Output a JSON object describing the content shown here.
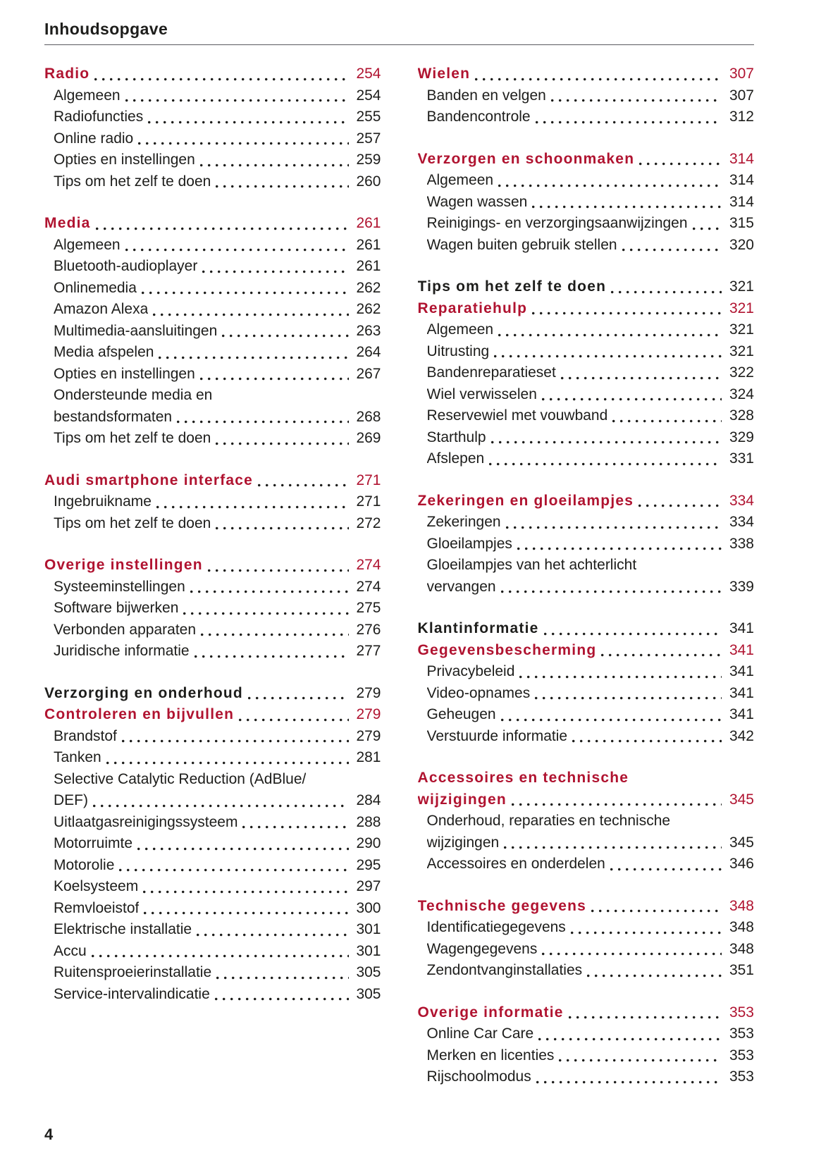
{
  "page": {
    "header": "Inhoudsopgave",
    "page_number": "4",
    "accent_color": "#b01330",
    "rule_color": "#595a5e",
    "text_color": "#1d1d1b"
  },
  "columns": [
    {
      "sections": [
        {
          "entries": [
            {
              "style": "red",
              "lines": [
                "Radio"
              ],
              "page": "254"
            },
            {
              "style": "item",
              "lines": [
                "Algemeen"
              ],
              "page": "254"
            },
            {
              "style": "item",
              "lines": [
                "Radiofuncties"
              ],
              "page": "255"
            },
            {
              "style": "item",
              "lines": [
                "Online radio"
              ],
              "page": "257"
            },
            {
              "style": "item",
              "lines": [
                "Opties en instellingen"
              ],
              "page": "259"
            },
            {
              "style": "item",
              "lines": [
                "Tips om het zelf te doen"
              ],
              "page": "260"
            }
          ]
        },
        {
          "entries": [
            {
              "style": "red",
              "lines": [
                "Media"
              ],
              "page": "261"
            },
            {
              "style": "item",
              "lines": [
                "Algemeen"
              ],
              "page": "261"
            },
            {
              "style": "item",
              "lines": [
                "Bluetooth-audioplayer"
              ],
              "page": "261"
            },
            {
              "style": "item",
              "lines": [
                "Onlinemedia"
              ],
              "page": "262"
            },
            {
              "style": "item",
              "lines": [
                "Amazon Alexa"
              ],
              "page": "262"
            },
            {
              "style": "item",
              "lines": [
                "Multimedia-aansluitingen"
              ],
              "page": "263"
            },
            {
              "style": "item",
              "lines": [
                "Media afspelen"
              ],
              "page": "264"
            },
            {
              "style": "item",
              "lines": [
                "Opties en instellingen"
              ],
              "page": "267"
            },
            {
              "style": "item",
              "lines": [
                "Ondersteunde media en",
                "bestandsformaten"
              ],
              "page": "268"
            },
            {
              "style": "item",
              "lines": [
                "Tips om het zelf te doen"
              ],
              "page": "269"
            }
          ]
        },
        {
          "entries": [
            {
              "style": "red",
              "lines": [
                "Audi smartphone interface"
              ],
              "page": "271"
            },
            {
              "style": "item",
              "lines": [
                "Ingebruikname"
              ],
              "page": "271"
            },
            {
              "style": "item",
              "lines": [
                "Tips om het zelf te doen"
              ],
              "page": "272"
            }
          ]
        },
        {
          "entries": [
            {
              "style": "red",
              "lines": [
                "Overige instellingen"
              ],
              "page": "274"
            },
            {
              "style": "item",
              "lines": [
                "Systeeminstellingen"
              ],
              "page": "274"
            },
            {
              "style": "item",
              "lines": [
                "Software bijwerken"
              ],
              "page": "275"
            },
            {
              "style": "item",
              "lines": [
                "Verbonden apparaten"
              ],
              "page": "276"
            },
            {
              "style": "item",
              "lines": [
                "Juridische informatie"
              ],
              "page": "277"
            }
          ]
        },
        {
          "entries": [
            {
              "style": "black",
              "lines": [
                "Verzorging en onderhoud"
              ],
              "page": "279"
            },
            {
              "style": "red",
              "lines": [
                "Controleren en bijvullen"
              ],
              "page": "279"
            },
            {
              "style": "item",
              "lines": [
                "Brandstof"
              ],
              "page": "279"
            },
            {
              "style": "item",
              "lines": [
                "Tanken"
              ],
              "page": "281"
            },
            {
              "style": "item",
              "lines": [
                "Selective Catalytic Reduction (AdBlue/",
                "DEF)"
              ],
              "page": "284"
            },
            {
              "style": "item",
              "lines": [
                "Uitlaatgasreinigingssysteem"
              ],
              "page": "288"
            },
            {
              "style": "item",
              "lines": [
                "Motorruimte"
              ],
              "page": "290"
            },
            {
              "style": "item",
              "lines": [
                "Motorolie"
              ],
              "page": "295"
            },
            {
              "style": "item",
              "lines": [
                "Koelsysteem"
              ],
              "page": "297"
            },
            {
              "style": "item",
              "lines": [
                "Remvloeistof"
              ],
              "page": "300"
            },
            {
              "style": "item",
              "lines": [
                "Elektrische installatie"
              ],
              "page": "301"
            },
            {
              "style": "item",
              "lines": [
                "Accu"
              ],
              "page": "301"
            },
            {
              "style": "item",
              "lines": [
                "Ruitensproeierinstallatie"
              ],
              "page": "305"
            },
            {
              "style": "item",
              "lines": [
                "Service-intervalindicatie"
              ],
              "page": "305"
            }
          ]
        }
      ]
    },
    {
      "sections": [
        {
          "entries": [
            {
              "style": "red",
              "lines": [
                "Wielen"
              ],
              "page": "307"
            },
            {
              "style": "item",
              "lines": [
                "Banden en velgen"
              ],
              "page": "307"
            },
            {
              "style": "item",
              "lines": [
                "Bandencontrole"
              ],
              "page": "312"
            }
          ]
        },
        {
          "entries": [
            {
              "style": "red",
              "lines": [
                "Verzorgen en schoonmaken"
              ],
              "page": "314"
            },
            {
              "style": "item",
              "lines": [
                "Algemeen"
              ],
              "page": "314"
            },
            {
              "style": "item",
              "lines": [
                "Wagen wassen"
              ],
              "page": "314"
            },
            {
              "style": "item",
              "lines": [
                "Reinigings- en verzorgingsaanwijzingen"
              ],
              "page": "315"
            },
            {
              "style": "item",
              "lines": [
                "Wagen buiten gebruik stellen"
              ],
              "page": "320"
            }
          ]
        },
        {
          "entries": [
            {
              "style": "black",
              "lines": [
                "Tips om het zelf te doen"
              ],
              "page": "321"
            },
            {
              "style": "red",
              "lines": [
                "Reparatiehulp"
              ],
              "page": "321"
            },
            {
              "style": "item",
              "lines": [
                "Algemeen"
              ],
              "page": "321"
            },
            {
              "style": "item",
              "lines": [
                "Uitrusting"
              ],
              "page": "321"
            },
            {
              "style": "item",
              "lines": [
                "Bandenreparatieset"
              ],
              "page": "322"
            },
            {
              "style": "item",
              "lines": [
                "Wiel verwisselen"
              ],
              "page": "324"
            },
            {
              "style": "item",
              "lines": [
                "Reservewiel met vouwband"
              ],
              "page": "328"
            },
            {
              "style": "item",
              "lines": [
                "Starthulp"
              ],
              "page": "329"
            },
            {
              "style": "item",
              "lines": [
                "Afslepen"
              ],
              "page": "331"
            }
          ]
        },
        {
          "entries": [
            {
              "style": "red",
              "lines": [
                "Zekeringen en gloeilampjes"
              ],
              "page": "334"
            },
            {
              "style": "item",
              "lines": [
                "Zekeringen"
              ],
              "page": "334"
            },
            {
              "style": "item",
              "lines": [
                "Gloeilampjes"
              ],
              "page": "338"
            },
            {
              "style": "item",
              "lines": [
                "Gloeilampjes van het achterlicht",
                "vervangen"
              ],
              "page": "339"
            }
          ]
        },
        {
          "entries": [
            {
              "style": "black",
              "lines": [
                "Klantinformatie"
              ],
              "page": "341"
            },
            {
              "style": "red",
              "lines": [
                "Gegevensbescherming"
              ],
              "page": "341"
            },
            {
              "style": "item",
              "lines": [
                "Privacybeleid"
              ],
              "page": "341"
            },
            {
              "style": "item",
              "lines": [
                "Video-opnames"
              ],
              "page": "341"
            },
            {
              "style": "item",
              "lines": [
                "Geheugen"
              ],
              "page": "341"
            },
            {
              "style": "item",
              "lines": [
                "Verstuurde informatie"
              ],
              "page": "342"
            }
          ]
        },
        {
          "entries": [
            {
              "style": "red",
              "lines": [
                "Accessoires en technische",
                "wijzigingen"
              ],
              "page": "345"
            },
            {
              "style": "item",
              "lines": [
                "Onderhoud, reparaties en technische",
                "wijzigingen"
              ],
              "page": "345"
            },
            {
              "style": "item",
              "lines": [
                "Accessoires en onderdelen"
              ],
              "page": "346"
            }
          ]
        },
        {
          "entries": [
            {
              "style": "red",
              "lines": [
                "Technische gegevens"
              ],
              "page": "348"
            },
            {
              "style": "item",
              "lines": [
                "Identificatiegegevens"
              ],
              "page": "348"
            },
            {
              "style": "item",
              "lines": [
                "Wagengegevens"
              ],
              "page": "348"
            },
            {
              "style": "item",
              "lines": [
                "Zendontvanginstallaties"
              ],
              "page": "351"
            }
          ]
        },
        {
          "entries": [
            {
              "style": "red",
              "lines": [
                "Overige informatie"
              ],
              "page": "353"
            },
            {
              "style": "item",
              "lines": [
                "Online Car Care"
              ],
              "page": "353"
            },
            {
              "style": "item",
              "lines": [
                "Merken en licenties"
              ],
              "page": "353"
            },
            {
              "style": "item",
              "lines": [
                "Rijschoolmodus"
              ],
              "page": "353"
            }
          ]
        }
      ]
    }
  ]
}
